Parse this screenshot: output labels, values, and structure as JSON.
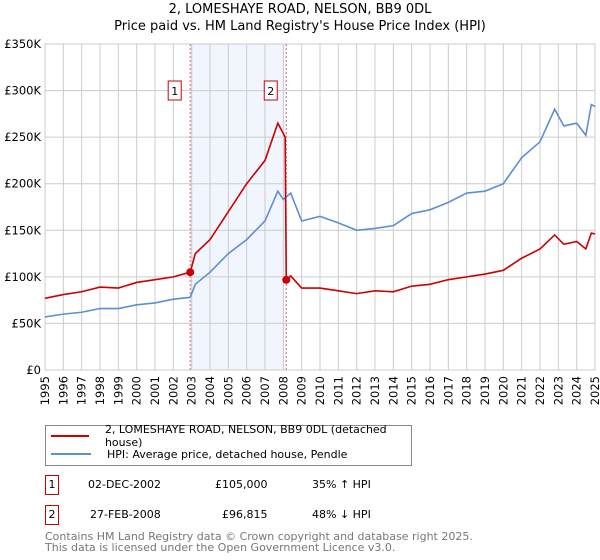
{
  "title": "2, LOMESHAYE ROAD, NELSON, BB9 0DL",
  "subtitle": "Price paid vs. HM Land Registry's House Price Index (HPI)",
  "chart_data": {
    "type": "line",
    "xlim": [
      1995,
      2025
    ],
    "ylim": [
      0,
      350000
    ],
    "y_ticks": [
      {
        "v": 0,
        "label": "£0"
      },
      {
        "v": 50000,
        "label": "£50K"
      },
      {
        "v": 100000,
        "label": "£100K"
      },
      {
        "v": 150000,
        "label": "£150K"
      },
      {
        "v": 200000,
        "label": "£200K"
      },
      {
        "v": 250000,
        "label": "£250K"
      },
      {
        "v": 300000,
        "label": "£300K"
      },
      {
        "v": 350000,
        "label": "£350K"
      }
    ],
    "x_ticks": [
      "1995",
      "1996",
      "1997",
      "1998",
      "1999",
      "2000",
      "2001",
      "2002",
      "2003",
      "2004",
      "2005",
      "2006",
      "2007",
      "2008",
      "2009",
      "2010",
      "2011",
      "2012",
      "2013",
      "2014",
      "2015",
      "2016",
      "2017",
      "2018",
      "2019",
      "2020",
      "2021",
      "2022",
      "2023",
      "2024",
      "2025"
    ],
    "grid": true,
    "series": [
      {
        "name": "2, LOMESHAYE ROAD, NELSON, BB9 0DL (detached house)",
        "color": "#cc0000",
        "x": [
          1995,
          1996,
          1997,
          1998,
          1999,
          2000,
          2001,
          2002,
          2002.92,
          2003.2,
          2004,
          2005,
          2006,
          2007,
          2007.7,
          2008.1,
          2008.16,
          2008.4,
          2009,
          2010,
          2011,
          2012,
          2013,
          2014,
          2015,
          2016,
          2017,
          2018,
          2019,
          2020,
          2021,
          2022,
          2022.8,
          2023.3,
          2024,
          2024.5,
          2024.8,
          2025
        ],
        "y": [
          77000,
          81000,
          84000,
          89000,
          88000,
          94000,
          97000,
          100000,
          105000,
          125000,
          140000,
          170000,
          200000,
          225000,
          265000,
          250000,
          96815,
          101000,
          88000,
          88000,
          85000,
          82000,
          85000,
          84000,
          90000,
          92000,
          97000,
          100000,
          103000,
          107000,
          120000,
          130000,
          145000,
          135000,
          138000,
          130000,
          147000,
          146000
        ]
      },
      {
        "name": "HPI: Average price, detached house, Pendle",
        "color": "#5b8fd4",
        "x": [
          1995,
          1996,
          1997,
          1998,
          1999,
          2000,
          2001,
          2002,
          2002.92,
          2003.2,
          2004,
          2005,
          2006,
          2007,
          2007.7,
          2008,
          2008.4,
          2009,
          2010,
          2011,
          2012,
          2013,
          2014,
          2015,
          2016,
          2017,
          2018,
          2019,
          2020,
          2021,
          2022,
          2022.8,
          2023.3,
          2024,
          2024.5,
          2024.8,
          2025
        ],
        "y": [
          57000,
          60000,
          62000,
          66000,
          66000,
          70000,
          72000,
          76000,
          78000,
          92000,
          105000,
          125000,
          140000,
          160000,
          192000,
          183000,
          190000,
          160000,
          165000,
          158000,
          150000,
          152000,
          155000,
          168000,
          172000,
          180000,
          190000,
          192000,
          200000,
          228000,
          245000,
          280000,
          262000,
          265000,
          252000,
          285000,
          283000
        ]
      }
    ],
    "annotations": [
      {
        "label": "1",
        "x": 2002.92,
        "y": 105000
      },
      {
        "label": "2",
        "x": 2008.16,
        "y": 96815
      }
    ],
    "shaded_range": [
      2002.92,
      2008.16
    ],
    "legend_placement": "below"
  },
  "sales": [
    {
      "num": "1",
      "date": "02-DEC-2002",
      "price": "£105,000",
      "hpi": "35% ↑ HPI"
    },
    {
      "num": "2",
      "date": "27-FEB-2008",
      "price": "£96,815",
      "hpi": "48% ↓ HPI"
    }
  ],
  "footer": [
    "Contains HM Land Registry data © Crown copyright and database right 2025.",
    "This data is licensed under the Open Government Licence v3.0."
  ]
}
